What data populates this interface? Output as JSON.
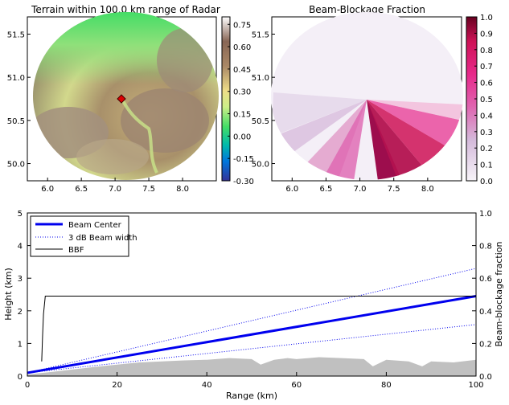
{
  "colors": {
    "beam_center": "#0000ee",
    "beam_width": "#0000ee",
    "bbf": "#000000",
    "terrain": "#c0c0c0"
  },
  "chart_data": [
    {
      "type": "heatmap",
      "title": "Terrain within 100.0 km range of Radar",
      "xlim": [
        5.7,
        8.5
      ],
      "ylim": [
        49.8,
        51.7
      ],
      "xticks": [
        "6.0",
        "6.5",
        "7.0",
        "7.5",
        "8.0"
      ],
      "yticks": [
        "50.0",
        "50.5",
        "51.0",
        "51.5"
      ],
      "radar_marker": {
        "lon": 7.07,
        "lat": 50.73
      },
      "colorbar": {
        "colormap": "terrain",
        "range": [
          -0.3,
          0.8
        ],
        "ticks": [
          "0.75",
          "0.60",
          "0.45",
          "0.30",
          "0.15",
          "0.00",
          "-0.15",
          "-0.30"
        ]
      }
    },
    {
      "type": "heatmap",
      "title": "Beam-Blockage Fraction",
      "xlim": [
        5.7,
        8.5
      ],
      "ylim": [
        49.8,
        51.7
      ],
      "xticks": [
        "6.0",
        "6.5",
        "7.0",
        "7.5",
        "8.0"
      ],
      "yticks": [
        "50.0",
        "50.5",
        "51.0",
        "51.5"
      ],
      "colorbar": {
        "colormap": "PuRd",
        "range": [
          0.0,
          1.0
        ],
        "ticks": [
          "1.0",
          "0.9",
          "0.8",
          "0.7",
          "0.6",
          "0.5",
          "0.4",
          "0.3",
          "0.2",
          "0.1",
          "0.0"
        ]
      }
    },
    {
      "type": "line",
      "xlabel": "Range (km)",
      "ylabel": "Height (km)",
      "ylabel_right": "Beam-blockage fraction",
      "xlim": [
        0,
        100
      ],
      "ylim": [
        0,
        5
      ],
      "ylim_right": [
        0,
        1
      ],
      "xticks": [
        "0",
        "20",
        "40",
        "60",
        "80",
        "100"
      ],
      "yticks": [
        "0",
        "1",
        "2",
        "3",
        "4",
        "5"
      ],
      "yticks_right": [
        "0.0",
        "0.2",
        "0.4",
        "0.6",
        "0.8",
        "1.0"
      ],
      "legend_placement": "top-left",
      "series": [
        {
          "name": "Beam Center",
          "style": "solid",
          "x": [
            0,
            100
          ],
          "y": [
            0.1,
            2.45
          ]
        },
        {
          "name": "3 dB Beam width",
          "style": "dotted",
          "x": [
            0,
            100
          ],
          "y": [
            0.1,
            3.3
          ]
        },
        {
          "name": "3 dB Beam width",
          "style": "dotted",
          "x": [
            0,
            100
          ],
          "y": [
            0.1,
            1.58
          ],
          "legend": false
        },
        {
          "name": "BBF",
          "style": "solid",
          "axis": "right",
          "x": [
            3.2,
            3.4,
            3.6,
            4.0,
            100
          ],
          "y": [
            0.09,
            0.25,
            0.38,
            0.49,
            0.49
          ]
        }
      ],
      "terrain": {
        "x": [
          0,
          5,
          10,
          15,
          20,
          25,
          30,
          35,
          40,
          45,
          50,
          52,
          55,
          58,
          60,
          65,
          70,
          75,
          77,
          80,
          85,
          88,
          90,
          95,
          100
        ],
        "y": [
          0.05,
          0.12,
          0.2,
          0.28,
          0.35,
          0.42,
          0.45,
          0.48,
          0.5,
          0.55,
          0.52,
          0.35,
          0.5,
          0.55,
          0.52,
          0.58,
          0.55,
          0.52,
          0.3,
          0.5,
          0.45,
          0.3,
          0.45,
          0.42,
          0.5
        ]
      }
    }
  ]
}
